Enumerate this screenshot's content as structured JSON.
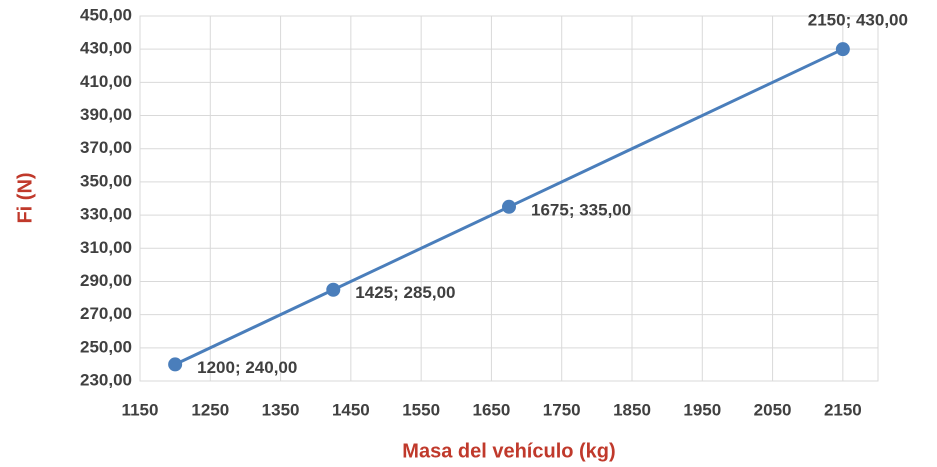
{
  "chart_data": {
    "type": "line",
    "xlabel": "Masa del vehículo (kg)",
    "ylabel": "Fi (N)",
    "x": [
      1200,
      1425,
      1675,
      2150
    ],
    "series": [
      {
        "color": "#4a7ebb",
        "values": [
          240,
          285,
          335,
          430
        ],
        "value_labels": [
          "1200; 240,00",
          "1425; 285,00",
          "1675; 335,00",
          "2150; 430,00"
        ]
      }
    ],
    "xlim": [
      1150,
      2200
    ],
    "xticks": [
      1150,
      1250,
      1350,
      1450,
      1550,
      1650,
      1750,
      1850,
      1950,
      2050,
      2150
    ],
    "ylim": [
      230,
      450
    ],
    "yticks": [
      {
        "value": 230,
        "label": "230,00"
      },
      {
        "value": 250,
        "label": "250,00"
      },
      {
        "value": 270,
        "label": "270,00"
      },
      {
        "value": 290,
        "label": "290,00"
      },
      {
        "value": 310,
        "label": "310,00"
      },
      {
        "value": 330,
        "label": "330,00"
      },
      {
        "value": 350,
        "label": "350,00"
      },
      {
        "value": 370,
        "label": "370,00"
      },
      {
        "value": 390,
        "label": "390,00"
      },
      {
        "value": 410,
        "label": "410,00"
      },
      {
        "value": 430,
        "label": "430,00"
      },
      {
        "value": 450,
        "label": "450,00"
      }
    ],
    "grid": true
  }
}
